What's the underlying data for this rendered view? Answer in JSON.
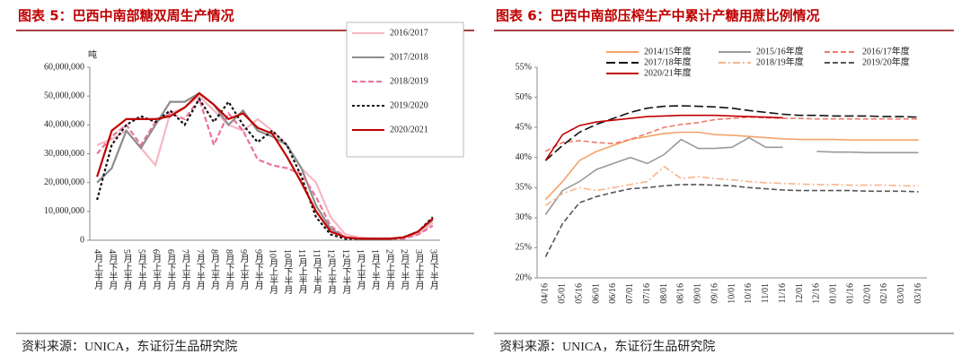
{
  "chart_data": [
    {
      "type": "line",
      "title": "图表 5：巴西中南部糖双周生产情况",
      "y_unit": "吨",
      "source": "资料来源：UNICA，东证衍生品研究院",
      "categories": [
        "4月上半月",
        "4月下半月",
        "5月上半月",
        "5月下半月",
        "6月上半月",
        "6月下半月",
        "7月上半月",
        "7月下半月",
        "8月上半月",
        "8月下半月",
        "9月上半月",
        "9月下半月",
        "10月上半月",
        "10月下半月",
        "11月上半月",
        "11月下半月",
        "12月上半月",
        "12月下半月",
        "1月上半月",
        "1月下半月",
        "2月上半月",
        "2月下半月",
        "3月上半月",
        "3月下半月"
      ],
      "ylim": [
        0,
        60000000
      ],
      "yticks": [
        0,
        {
          "value": 10000000,
          "label": "10,000,000"
        },
        {
          "value": 20000000,
          "label": "20,000,000"
        },
        {
          "value": 30000000,
          "label": "30,000,000"
        },
        {
          "value": 40000000,
          "label": "40,000,000"
        },
        {
          "value": 50000000,
          "label": "50,000,000"
        },
        {
          "value": 60000000,
          "label": "60,000,000"
        }
      ],
      "grid": false,
      "legend": "right",
      "series": [
        {
          "name": "2016/2017",
          "color": "#f7b6c2",
          "dash": "solid",
          "values": [
            33000000,
            35000000,
            38000000,
            32000000,
            26000000,
            44000000,
            46000000,
            50000000,
            45000000,
            40000000,
            38000000,
            42000000,
            38000000,
            33000000,
            25000000,
            20000000,
            8000000,
            2000000,
            1000000,
            500000,
            500000,
            1000000,
            2000000,
            6000000
          ]
        },
        {
          "name": "2017/2018",
          "color": "#8c8c8c",
          "dash": "solid",
          "values": [
            20000000,
            25000000,
            38000000,
            32000000,
            40000000,
            48000000,
            48000000,
            51000000,
            47000000,
            40000000,
            45000000,
            38000000,
            36000000,
            33000000,
            25000000,
            12000000,
            4000000,
            1000000,
            500000,
            500000,
            500000,
            1000000,
            3000000,
            7000000
          ]
        },
        {
          "name": "2018/2019",
          "color": "#e8739a",
          "dash": "dashed",
          "values": [
            30000000,
            36000000,
            40000000,
            33000000,
            41000000,
            44000000,
            42000000,
            49000000,
            33000000,
            44000000,
            38000000,
            28000000,
            26000000,
            25000000,
            23000000,
            15000000,
            5000000,
            1000000,
            500000,
            500000,
            500000,
            500000,
            2000000,
            5000000
          ]
        },
        {
          "name": "2019/2020",
          "color": "#111111",
          "dash": "dotted",
          "values": [
            14000000,
            33000000,
            40000000,
            43000000,
            41000000,
            45000000,
            40000000,
            49000000,
            41000000,
            48000000,
            40000000,
            34000000,
            38000000,
            33000000,
            22000000,
            8000000,
            2000000,
            500000,
            500000,
            500000,
            500000,
            1000000,
            3000000,
            8000000
          ]
        },
        {
          "name": "2020/2021",
          "color": "#c00000",
          "dash": "solid",
          "values": [
            22000000,
            38000000,
            42000000,
            42000000,
            42000000,
            43000000,
            46000000,
            51000000,
            47000000,
            42000000,
            44000000,
            39000000,
            37000000,
            29000000,
            20000000,
            10000000,
            3000000,
            1000000,
            500000,
            500000,
            500000,
            1000000,
            3000000,
            7500000
          ]
        }
      ]
    },
    {
      "type": "line",
      "title": "图表 6：巴西中南部压榨生产中累计产糖用蔗比例情况",
      "source": "资料来源：UNICA，东证衍生品研究院",
      "categories": [
        "04/16",
        "05/01",
        "05/16",
        "06/01",
        "06/16",
        "07/01",
        "07/16",
        "08/01",
        "08/16",
        "09/01",
        "09/16",
        "10/01",
        "10/16",
        "11/01",
        "11/16",
        "12/01",
        "12/16",
        "01/01",
        "01/16",
        "02/01",
        "02/16",
        "03/01",
        "03/16"
      ],
      "ylim": [
        20,
        55
      ],
      "yticks": [
        {
          "value": 20,
          "label": "20%"
        },
        {
          "value": 25,
          "label": "25%"
        },
        {
          "value": 30,
          "label": "30%"
        },
        {
          "value": 35,
          "label": "35%"
        },
        {
          "value": 40,
          "label": "40%"
        },
        {
          "value": 45,
          "label": "45%"
        },
        {
          "value": 50,
          "label": "50%"
        },
        {
          "value": 55,
          "label": "55%"
        }
      ],
      "grid": false,
      "legend": "top",
      "series": [
        {
          "name": "2014/15年度",
          "color": "#f4a36b",
          "dash": "solid",
          "values": [
            33,
            36,
            39.5,
            41,
            42,
            43,
            43.5,
            44,
            44.2,
            44.2,
            43.8,
            43.7,
            43.5,
            43.3,
            43.1,
            43,
            43,
            43,
            42.9,
            42.9,
            42.9,
            42.9,
            42.9
          ]
        },
        {
          "name": "2015/16年度",
          "color": "#9a9a9a",
          "dash": "solid",
          "values": [
            30.5,
            34.5,
            36,
            38,
            39,
            40,
            39,
            40.5,
            43,
            41.5,
            41.5,
            41.7,
            43.3,
            41.7,
            41.7,
            null,
            41,
            40.9,
            40.9,
            40.8,
            40.8,
            40.8,
            40.8
          ]
        },
        {
          "name": "2016/17年度",
          "color": "#ef7b6a",
          "dash": "dashed",
          "values": [
            41,
            42.5,
            42.8,
            42.5,
            42.3,
            43,
            44,
            45,
            45.5,
            45.8,
            46.3,
            46.5,
            46.7,
            46.6,
            46.5,
            46.5,
            46.4,
            46.4,
            46.4,
            46.4,
            46.4,
            46.4,
            46.4
          ]
        },
        {
          "name": "2017/18年度",
          "color": "#111111",
          "dash": "longdash",
          "values": [
            39.5,
            42,
            44.2,
            45.5,
            46.5,
            47.5,
            48.2,
            48.5,
            48.6,
            48.5,
            48.4,
            48.2,
            47.8,
            47.5,
            47.2,
            47,
            47,
            46.9,
            46.9,
            46.9,
            46.8,
            46.8,
            46.7
          ]
        },
        {
          "name": "2018/19年度",
          "color": "#f6b48c",
          "dash": "dashdot",
          "values": [
            32,
            34,
            35,
            34.5,
            35,
            35.5,
            36,
            38.5,
            36.5,
            36.8,
            36.5,
            36.3,
            36,
            35.8,
            35.7,
            35.6,
            35.5,
            35.5,
            35.4,
            35.4,
            35.4,
            35.3,
            35.3
          ]
        },
        {
          "name": "2019/20年度",
          "color": "#555555",
          "dash": "dashed",
          "values": [
            23.5,
            29,
            32.5,
            33.5,
            34.2,
            34.8,
            35,
            35.3,
            35.5,
            35.5,
            35.4,
            35.3,
            35,
            34.8,
            34.6,
            34.5,
            34.5,
            34.5,
            34.5,
            34.4,
            34.4,
            34.4,
            34.3
          ]
        },
        {
          "name": "2020/21年度",
          "color": "#c00000",
          "dash": "solid",
          "values": [
            39.5,
            43.8,
            45.3,
            45.9,
            46.2,
            46.5,
            46.8,
            46.9,
            47,
            47,
            47,
            46.9,
            46.8,
            46.7,
            46.6,
            null,
            null,
            null,
            null,
            null,
            null,
            null,
            null
          ]
        }
      ]
    }
  ]
}
